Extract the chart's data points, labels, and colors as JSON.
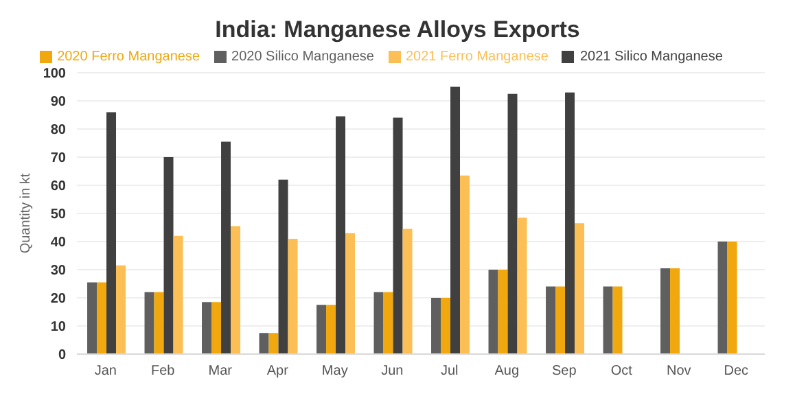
{
  "chart_data": {
    "type": "bar",
    "title": "India: Manganese Alloys Exports",
    "ylabel": "Quantity in kt",
    "categories": [
      "Jan",
      "Feb",
      "Mar",
      "Apr",
      "May",
      "Jun",
      "Jul",
      "Aug",
      "Sep",
      "Oct",
      "Nov",
      "Dec"
    ],
    "series": [
      {
        "name": "2020 Silico Manganese",
        "color": "#5f5f5f",
        "values": [
          25.5,
          22,
          18.5,
          7.5,
          17.5,
          22,
          20,
          30,
          24,
          24,
          30.5,
          40
        ]
      },
      {
        "name": "2020 Ferro Manganese",
        "color": "#f0a80e",
        "values": [
          25.5,
          22,
          18.5,
          7.5,
          17.5,
          22,
          20,
          30,
          24,
          24,
          30.5,
          40
        ]
      },
      {
        "name": "2021 Silico Manganese",
        "color": "#404040",
        "values": [
          86,
          70,
          75.5,
          62,
          84.5,
          84,
          95,
          92.5,
          93,
          null,
          null,
          null
        ]
      },
      {
        "name": "2021 Ferro Manganese",
        "color": "#fbbf55",
        "values": [
          31.5,
          42,
          45.5,
          41,
          43,
          44.5,
          63.5,
          48.5,
          46.5,
          null,
          null,
          null
        ]
      }
    ],
    "ylim": [
      0,
      100
    ],
    "yticks": [
      0,
      10,
      20,
      30,
      40,
      50,
      60,
      70,
      80,
      90,
      100
    ],
    "grid": "y",
    "legend": "top"
  }
}
